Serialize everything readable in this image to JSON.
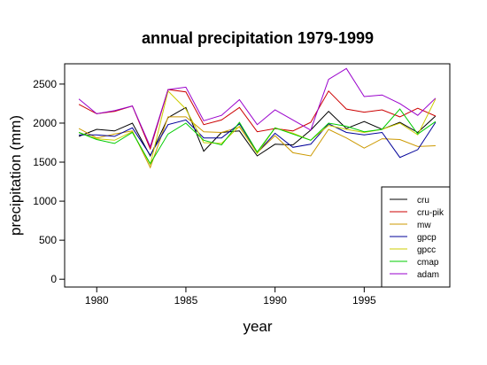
{
  "chart_data": {
    "type": "line",
    "title": "annual precipitation 1979-1999",
    "xlabel": "year",
    "ylabel": "precipitation (mm)",
    "xlim": [
      1978.2,
      1999.8
    ],
    "ylim": [
      -100,
      2760
    ],
    "x_ticks": [
      1980,
      1985,
      1990,
      1995
    ],
    "y_ticks": [
      0,
      500,
      1000,
      1500,
      2000,
      2500
    ],
    "grid": false,
    "legend_position": "bottom-right",
    "x": [
      1979,
      1980,
      1981,
      1982,
      1983,
      1984,
      1985,
      1986,
      1987,
      1988,
      1989,
      1990,
      1991,
      1992,
      1993,
      1994,
      1995,
      1996,
      1997,
      1998,
      1999
    ],
    "series": [
      {
        "name": "cru",
        "color": "#000000",
        "values": [
          1830,
          1920,
          1900,
          2000,
          1580,
          2070,
          2200,
          1640,
          1880,
          1900,
          1580,
          1730,
          1720,
          1910,
          2150,
          1930,
          2020,
          1920,
          2010,
          1880,
          2090
        ]
      },
      {
        "name": "cru-pik",
        "color": "#cc0000",
        "values": [
          2240,
          2120,
          2150,
          2220,
          1670,
          2430,
          2400,
          1980,
          2040,
          2200,
          1890,
          1930,
          1900,
          2010,
          2410,
          2180,
          2140,
          2170,
          2080,
          2190,
          2090
        ]
      },
      {
        "name": "mw",
        "color": "#cc9900",
        "values": [
          1930,
          1810,
          1860,
          1900,
          1430,
          2080,
          2080,
          1890,
          1880,
          1950,
          1620,
          1840,
          1620,
          1580,
          1920,
          1810,
          1680,
          1800,
          1790,
          1700,
          1710
        ]
      },
      {
        "name": "gpcp",
        "color": "#000099",
        "values": [
          1850,
          1850,
          1830,
          1940,
          1590,
          1980,
          2040,
          1810,
          1810,
          1990,
          1620,
          1870,
          1690,
          1730,
          1990,
          1880,
          1850,
          1880,
          1560,
          1660,
          2010
        ]
      },
      {
        "name": "gpcc",
        "color": "#cccc00",
        "values": [
          1880,
          1800,
          1780,
          1890,
          1470,
          2410,
          2180,
          1750,
          1740,
          1960,
          1610,
          1940,
          1870,
          1780,
          1970,
          1920,
          1880,
          1920,
          2000,
          1850,
          2310
        ]
      },
      {
        "name": "cmap",
        "color": "#00cc00",
        "values": [
          1880,
          1790,
          1740,
          1880,
          1480,
          1860,
          2000,
          1780,
          1720,
          2010,
          1630,
          1940,
          1860,
          1780,
          2000,
          1960,
          1890,
          1920,
          2180,
          1860,
          2020
        ]
      },
      {
        "name": "adam",
        "color": "#9900cc",
        "values": [
          2310,
          2120,
          2160,
          2220,
          1700,
          2430,
          2460,
          2030,
          2100,
          2300,
          1980,
          2170,
          2040,
          1910,
          2560,
          2700,
          2340,
          2360,
          2250,
          2100,
          2320
        ]
      }
    ]
  }
}
